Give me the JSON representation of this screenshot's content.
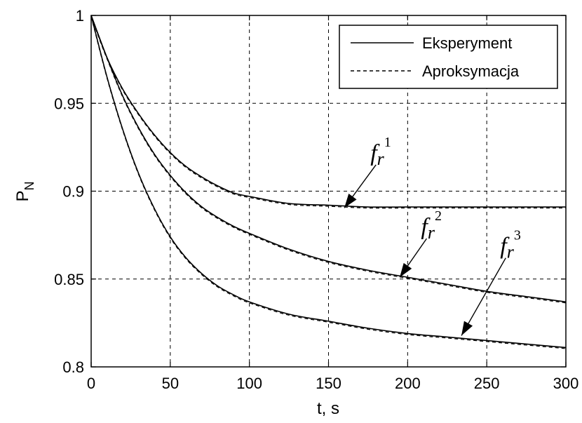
{
  "chart_data": {
    "type": "line",
    "xlabel": "t, s",
    "ylabel": "P",
    "ylabel_sub": "N",
    "xlim": [
      0,
      300
    ],
    "ylim": [
      0.8,
      1.0
    ],
    "xticks": [
      0,
      50,
      100,
      150,
      200,
      250,
      300
    ],
    "yticks": [
      0.8,
      0.85,
      0.9,
      0.95,
      1
    ],
    "xtick_labels": [
      "0",
      "50",
      "100",
      "150",
      "200",
      "250",
      "300"
    ],
    "ytick_labels": [
      "0.8",
      "0.85",
      "0.9",
      "0.95",
      "1"
    ],
    "grid": true,
    "legend": {
      "placement": "top-right",
      "entries": [
        {
          "label": "Eksperyment",
          "style": "solid"
        },
        {
          "label": "Aproksymacja",
          "style": "dashed"
        }
      ]
    },
    "x": [
      0,
      10,
      20,
      30,
      40,
      50,
      60,
      70,
      80,
      90,
      100,
      125,
      150,
      175,
      200,
      225,
      250,
      275,
      300
    ],
    "series": [
      {
        "id": "fr1",
        "values": [
          1.0,
          0.976,
          0.958,
          0.944,
          0.932,
          0.922,
          0.914,
          0.908,
          0.903,
          0.899,
          0.897,
          0.893,
          0.892,
          0.891,
          0.891,
          0.891,
          0.891,
          0.891,
          0.891
        ]
      },
      {
        "id": "fr2",
        "values": [
          1.0,
          0.976,
          0.954,
          0.936,
          0.921,
          0.909,
          0.899,
          0.891,
          0.885,
          0.88,
          0.876,
          0.867,
          0.86,
          0.855,
          0.851,
          0.847,
          0.843,
          0.84,
          0.837
        ]
      },
      {
        "id": "fr3",
        "values": [
          1.0,
          0.965,
          0.935,
          0.91,
          0.89,
          0.874,
          0.862,
          0.853,
          0.846,
          0.841,
          0.837,
          0.83,
          0.826,
          0.822,
          0.819,
          0.817,
          0.815,
          0.813,
          0.811
        ]
      }
    ],
    "annotations": [
      {
        "id": "fr1",
        "base": "f",
        "sub": "r",
        "sup": "1",
        "arrow_to": [
          160,
          0.8905
        ],
        "arrow_from": [
          180,
          0.915
        ]
      },
      {
        "id": "fr2",
        "base": "f",
        "sub": "r",
        "sup": "2",
        "arrow_to": [
          195,
          0.851
        ],
        "arrow_from": [
          212,
          0.873
        ]
      },
      {
        "id": "fr3",
        "base": "f",
        "sub": "r",
        "sup": "3",
        "arrow_to": [
          234,
          0.8178
        ],
        "arrow_from": [
          262,
          0.862
        ]
      }
    ]
  }
}
